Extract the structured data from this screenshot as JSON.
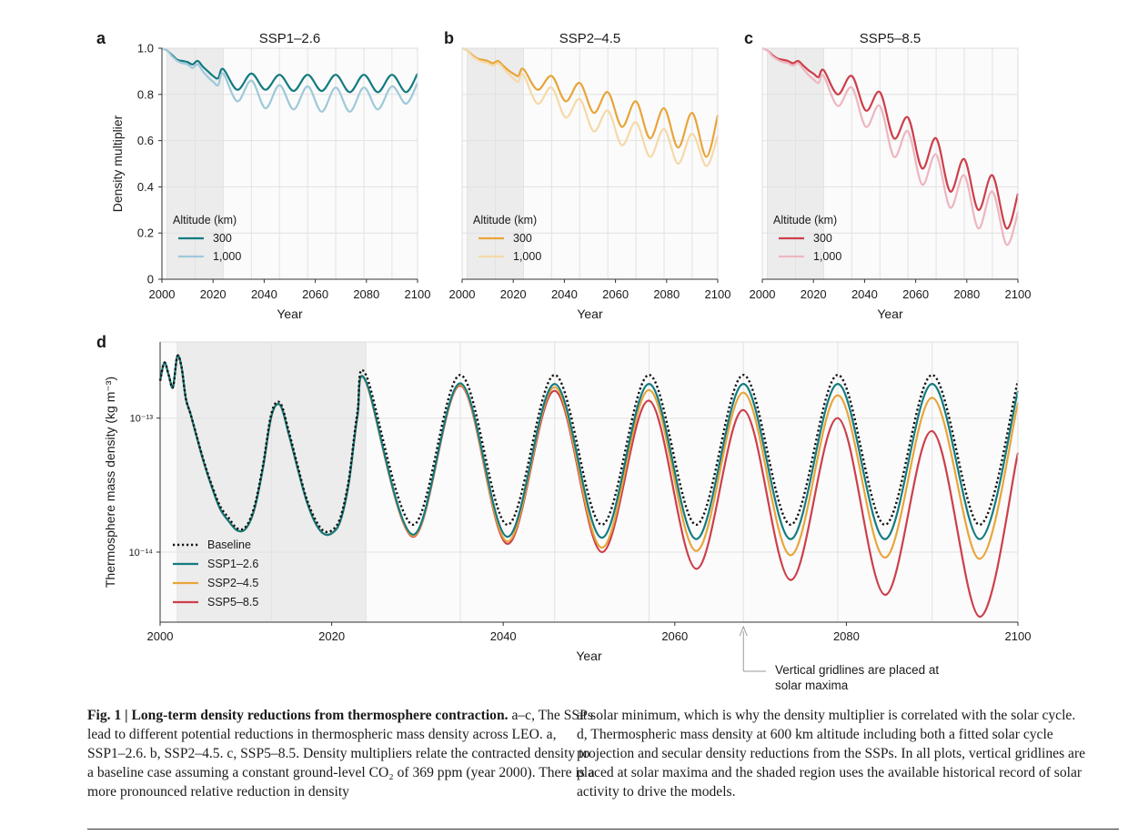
{
  "chart_data": [
    {
      "panel": "a",
      "type": "line",
      "title": "SSP1–2.6",
      "xlabel": "Year",
      "ylabel": "Density multiplier",
      "xlim": [
        2000,
        2100
      ],
      "ylim": [
        0,
        1.0
      ],
      "xticks": [
        "2000",
        "2020",
        "2040",
        "2060",
        "2080",
        "2100"
      ],
      "yticks": [
        "0",
        "0.2",
        "0.4",
        "0.6",
        "0.8",
        "1.0"
      ],
      "legend_title": "Altitude (km)",
      "legend_position": "lower-left",
      "solar_maxima": [
        2002,
        2013,
        2024,
        2035,
        2046,
        2057,
        2068,
        2079,
        2090
      ],
      "shaded_region": [
        2002,
        2024
      ],
      "series": [
        {
          "name": "300",
          "color": "#137b80",
          "x": [
            2000,
            2002,
            2004,
            2006,
            2008,
            2010,
            2012,
            2014,
            2016,
            2018,
            2020,
            2022,
            2024,
            2029.5,
            2035,
            2040.5,
            2046,
            2051.5,
            2057,
            2062.5,
            2068,
            2073.5,
            2079,
            2084.5,
            2090,
            2095.5,
            2100
          ],
          "y": [
            1.0,
            0.99,
            0.97,
            0.95,
            0.945,
            0.94,
            0.93,
            0.945,
            0.92,
            0.9,
            0.88,
            0.87,
            0.91,
            0.82,
            0.89,
            0.82,
            0.885,
            0.815,
            0.885,
            0.815,
            0.885,
            0.81,
            0.885,
            0.81,
            0.885,
            0.81,
            0.89
          ]
        },
        {
          "name": "1,000",
          "color": "#9fc9d9",
          "x": [
            2000,
            2002,
            2004,
            2006,
            2008,
            2010,
            2012,
            2014,
            2016,
            2018,
            2020,
            2022,
            2024,
            2029.5,
            2035,
            2040.5,
            2046,
            2051.5,
            2057,
            2062.5,
            2068,
            2073.5,
            2079,
            2084.5,
            2090,
            2095.5,
            2100
          ],
          "y": [
            1.0,
            0.99,
            0.965,
            0.945,
            0.935,
            0.93,
            0.915,
            0.93,
            0.9,
            0.875,
            0.855,
            0.84,
            0.89,
            0.77,
            0.86,
            0.74,
            0.84,
            0.735,
            0.835,
            0.725,
            0.83,
            0.725,
            0.83,
            0.735,
            0.835,
            0.76,
            0.85
          ]
        }
      ]
    },
    {
      "panel": "b",
      "type": "line",
      "title": "SSP2–4.5",
      "xlabel": "Year",
      "ylabel": "",
      "xlim": [
        2000,
        2100
      ],
      "ylim": [
        0,
        1.0
      ],
      "xticks": [
        "2000",
        "2020",
        "2040",
        "2060",
        "2080",
        "2100"
      ],
      "legend_title": "Altitude (km)",
      "legend_position": "lower-left",
      "solar_maxima": [
        2002,
        2013,
        2024,
        2035,
        2046,
        2057,
        2068,
        2079,
        2090
      ],
      "shaded_region": [
        2002,
        2024
      ],
      "series": [
        {
          "name": "300",
          "color": "#e8a53a",
          "x": [
            2000,
            2002,
            2004,
            2006,
            2008,
            2010,
            2012,
            2014,
            2016,
            2018,
            2020,
            2022,
            2024,
            2029.5,
            2035,
            2040.5,
            2046,
            2051.5,
            2057,
            2062.5,
            2068,
            2073.5,
            2079,
            2084.5,
            2090,
            2095.5,
            2100
          ],
          "y": [
            1.0,
            0.99,
            0.97,
            0.955,
            0.95,
            0.945,
            0.935,
            0.945,
            0.925,
            0.905,
            0.89,
            0.88,
            0.91,
            0.82,
            0.88,
            0.77,
            0.85,
            0.72,
            0.81,
            0.66,
            0.77,
            0.61,
            0.74,
            0.57,
            0.72,
            0.53,
            0.71
          ]
        },
        {
          "name": "1,000",
          "color": "#f6d9a8",
          "x": [
            2000,
            2002,
            2004,
            2006,
            2008,
            2010,
            2012,
            2014,
            2016,
            2018,
            2020,
            2022,
            2024,
            2029.5,
            2035,
            2040.5,
            2046,
            2051.5,
            2057,
            2062.5,
            2068,
            2073.5,
            2079,
            2084.5,
            2090,
            2095.5,
            2100
          ],
          "y": [
            1.0,
            0.99,
            0.965,
            0.95,
            0.94,
            0.935,
            0.925,
            0.935,
            0.915,
            0.89,
            0.87,
            0.855,
            0.885,
            0.76,
            0.83,
            0.7,
            0.78,
            0.64,
            0.73,
            0.58,
            0.68,
            0.53,
            0.65,
            0.5,
            0.63,
            0.49,
            0.62
          ]
        }
      ]
    },
    {
      "panel": "c",
      "type": "line",
      "title": "SSP5–8.5",
      "xlabel": "Year",
      "ylabel": "",
      "xlim": [
        2000,
        2100
      ],
      "ylim": [
        0,
        1.0
      ],
      "xticks": [
        "2000",
        "2020",
        "2040",
        "2060",
        "2080",
        "2100"
      ],
      "legend_title": "Altitude (km)",
      "legend_position": "lower-left",
      "solar_maxima": [
        2002,
        2013,
        2024,
        2035,
        2046,
        2057,
        2068,
        2079,
        2090
      ],
      "shaded_region": [
        2002,
        2024
      ],
      "series": [
        {
          "name": "300",
          "color": "#cc3f4b",
          "x": [
            2000,
            2002,
            2004,
            2006,
            2008,
            2010,
            2012,
            2014,
            2016,
            2018,
            2020,
            2022,
            2024,
            2029.5,
            2035,
            2040.5,
            2046,
            2051.5,
            2057,
            2062.5,
            2068,
            2073.5,
            2079,
            2084.5,
            2090,
            2095.5,
            2100
          ],
          "y": [
            1.0,
            0.99,
            0.97,
            0.955,
            0.95,
            0.945,
            0.935,
            0.945,
            0.925,
            0.905,
            0.89,
            0.875,
            0.905,
            0.8,
            0.88,
            0.73,
            0.81,
            0.61,
            0.7,
            0.48,
            0.61,
            0.38,
            0.52,
            0.3,
            0.45,
            0.22,
            0.37
          ]
        },
        {
          "name": "1,000",
          "color": "#eeb6c0",
          "x": [
            2000,
            2002,
            2004,
            2006,
            2008,
            2010,
            2012,
            2014,
            2016,
            2018,
            2020,
            2022,
            2024,
            2029.5,
            2035,
            2040.5,
            2046,
            2051.5,
            2057,
            2062.5,
            2068,
            2073.5,
            2079,
            2084.5,
            2090,
            2095.5,
            2100
          ],
          "y": [
            1.0,
            0.99,
            0.965,
            0.95,
            0.94,
            0.935,
            0.925,
            0.935,
            0.91,
            0.885,
            0.865,
            0.85,
            0.88,
            0.75,
            0.83,
            0.66,
            0.75,
            0.53,
            0.64,
            0.41,
            0.54,
            0.31,
            0.45,
            0.22,
            0.38,
            0.15,
            0.29
          ]
        }
      ]
    },
    {
      "panel": "d",
      "type": "line",
      "title": "",
      "xlabel": "Year",
      "ylabel": "Thermosphere mass density (kg m⁻³)",
      "yscale": "log",
      "xlim": [
        2000,
        2100
      ],
      "ylim": [
        3e-15,
        3.7e-13
      ],
      "xticks": [
        "2000",
        "2020",
        "2040",
        "2060",
        "2080",
        "2100"
      ],
      "yticks": [
        {
          "value": 1e-13,
          "label": "10⁻¹³"
        },
        {
          "value": 1e-14,
          "label": "10⁻¹⁴"
        }
      ],
      "legend_position": "lower-left",
      "solar_maxima": [
        2002,
        2013,
        2024,
        2035,
        2046,
        2057,
        2068,
        2079,
        2090
      ],
      "shaded_region": [
        2002,
        2024
      ],
      "annotation": {
        "text": [
          "Vertical gridlines are placed at",
          "solar maxima"
        ],
        "x": 2068
      },
      "series": [
        {
          "name": "Baseline",
          "color": "#111111",
          "dashed": true,
          "x": [
            2000,
            2000.5,
            2001,
            2001.5,
            2002,
            2002.5,
            2003,
            2003.5,
            2004,
            2005,
            2006,
            2007,
            2008,
            2009,
            2010,
            2011,
            2012,
            2013,
            2014,
            2015,
            2016,
            2017,
            2018,
            2019,
            2020,
            2021,
            2022,
            2023,
            2024,
            2029.5,
            2035,
            2040.5,
            2046,
            2051.5,
            2057,
            2062.5,
            2068,
            2073.5,
            2079,
            2084.5,
            2090,
            2095.5,
            2100
          ],
          "y": [
            1.9e-13,
            2.6e-13,
            2.1e-13,
            1.7e-13,
            2.9e-13,
            2.4e-13,
            1.4e-13,
            1.1e-13,
            8.5e-14,
            5e-14,
            3.2e-14,
            2.2e-14,
            1.8e-14,
            1.5e-14,
            1.55e-14,
            2.2e-14,
            4.5e-14,
            1.1e-13,
            1.3e-13,
            8e-14,
            4.5e-14,
            2.6e-14,
            1.8e-14,
            1.45e-14,
            1.45e-14,
            1.8e-14,
            3.5e-14,
            1.1e-13,
            2.1e-13,
            1.6e-14,
            2.1e-13,
            1.6e-14,
            2.1e-13,
            1.6e-14,
            2.1e-13,
            1.6e-14,
            2.1e-13,
            1.6e-14,
            2.1e-13,
            1.6e-14,
            2.1e-13,
            1.6e-14,
            1.9e-13
          ]
        },
        {
          "name": "SSP1–2.6",
          "color": "#137b80",
          "x": [
            2000,
            2000.5,
            2001,
            2001.5,
            2002,
            2002.5,
            2003,
            2003.5,
            2004,
            2005,
            2006,
            2007,
            2008,
            2009,
            2010,
            2011,
            2012,
            2013,
            2014,
            2015,
            2016,
            2017,
            2018,
            2019,
            2020,
            2021,
            2022,
            2023,
            2024,
            2029.5,
            2035,
            2040.5,
            2046,
            2051.5,
            2057,
            2062.5,
            2068,
            2073.5,
            2079,
            2084.5,
            2090,
            2095.5,
            2100
          ],
          "y": [
            1.9e-13,
            2.6e-13,
            2.1e-13,
            1.7e-13,
            2.9e-13,
            2.4e-13,
            1.4e-13,
            1.1e-13,
            8.4e-14,
            4.9e-14,
            3.1e-14,
            2.1e-14,
            1.7e-14,
            1.45e-14,
            1.5e-14,
            2.1e-14,
            4.3e-14,
            1.05e-13,
            1.25e-13,
            7.6e-14,
            4.3e-14,
            2.5e-14,
            1.7e-14,
            1.38e-14,
            1.38e-14,
            1.7e-14,
            3.3e-14,
            1.03e-13,
            1.88e-13,
            1.35e-14,
            1.82e-13,
            1.3e-14,
            1.8e-13,
            1.28e-14,
            1.8e-13,
            1.25e-14,
            1.8e-13,
            1.25e-14,
            1.8e-13,
            1.25e-14,
            1.8e-13,
            1.25e-14,
            1.6e-13
          ]
        },
        {
          "name": "SSP2–4.5",
          "color": "#e8a53a",
          "x": [
            2000,
            2000.5,
            2001,
            2001.5,
            2002,
            2002.5,
            2003,
            2003.5,
            2004,
            2005,
            2006,
            2007,
            2008,
            2009,
            2010,
            2011,
            2012,
            2013,
            2014,
            2015,
            2016,
            2017,
            2018,
            2019,
            2020,
            2021,
            2022,
            2023,
            2024,
            2029.5,
            2035,
            2040.5,
            2046,
            2051.5,
            2057,
            2062.5,
            2068,
            2073.5,
            2079,
            2084.5,
            2090,
            2095.5,
            2100
          ],
          "y": [
            1.9e-13,
            2.6e-13,
            2.1e-13,
            1.7e-13,
            2.9e-13,
            2.4e-13,
            1.4e-13,
            1.1e-13,
            8.4e-14,
            4.9e-14,
            3.1e-14,
            2.1e-14,
            1.7e-14,
            1.45e-14,
            1.5e-14,
            2.1e-14,
            4.3e-14,
            1.05e-13,
            1.25e-13,
            7.6e-14,
            4.3e-14,
            2.5e-14,
            1.7e-14,
            1.38e-14,
            1.38e-14,
            1.7e-14,
            3.3e-14,
            1.03e-13,
            1.86e-13,
            1.32e-14,
            1.78e-13,
            1.2e-14,
            1.7e-13,
            1.08e-14,
            1.62e-13,
            1.02e-14,
            1.55e-13,
            9.5e-15,
            1.48e-13,
            9.1e-15,
            1.42e-13,
            8.9e-15,
            1.3e-13
          ]
        },
        {
          "name": "SSP5–8.5",
          "color": "#cc3f4b",
          "x": [
            2000,
            2000.5,
            2001,
            2001.5,
            2002,
            2002.5,
            2003,
            2003.5,
            2004,
            2005,
            2006,
            2007,
            2008,
            2009,
            2010,
            2011,
            2012,
            2013,
            2014,
            2015,
            2016,
            2017,
            2018,
            2019,
            2020,
            2021,
            2022,
            2023,
            2024,
            2029.5,
            2035,
            2040.5,
            2046,
            2051.5,
            2057,
            2062.5,
            2068,
            2073.5,
            2079,
            2084.5,
            2090,
            2095.5,
            2100
          ],
          "y": [
            1.9e-13,
            2.6e-13,
            2.1e-13,
            1.7e-13,
            2.9e-13,
            2.4e-13,
            1.4e-13,
            1.1e-13,
            8.4e-14,
            4.9e-14,
            3.1e-14,
            2.1e-14,
            1.7e-14,
            1.45e-14,
            1.5e-14,
            2.1e-14,
            4.3e-14,
            1.05e-13,
            1.25e-13,
            7.6e-14,
            4.3e-14,
            2.5e-14,
            1.7e-14,
            1.38e-14,
            1.38e-14,
            1.7e-14,
            3.3e-14,
            1.03e-13,
            1.86e-13,
            1.3e-14,
            1.75e-13,
            1.15e-14,
            1.6e-13,
            1e-14,
            1.35e-13,
            7.5e-15,
            1.15e-13,
            6.2e-15,
            1e-13,
            4.8e-15,
            8e-14,
            3.3e-15,
            5.5e-14
          ]
        }
      ]
    }
  ],
  "caption": {
    "fig_label": "Fig. 1 | ",
    "title": "Long-term density reductions from thermosphere contraction.",
    "left_text": "a–c, The SSPs lead to different potential reductions in thermospheric mass density across LEO. a, SSP1–2.6. b, SSP2–4.5. c, SSP5–8.5. Density multipliers relate the contracted density to a baseline case assuming a constant ground-level CO₂ of 369 ppm (year 2000). There is a more pronounced relative reduction in density",
    "right_text": "at solar minimum, which is why the density multiplier is correlated with the solar cycle. d, Thermospheric mass density at 600 km altitude including both a fitted solar cycle projection and secular density reductions from the SSPs. In all plots, vertical gridlines are placed at solar maxima and the shaded region uses the available historical record of solar activity to drive the models."
  }
}
